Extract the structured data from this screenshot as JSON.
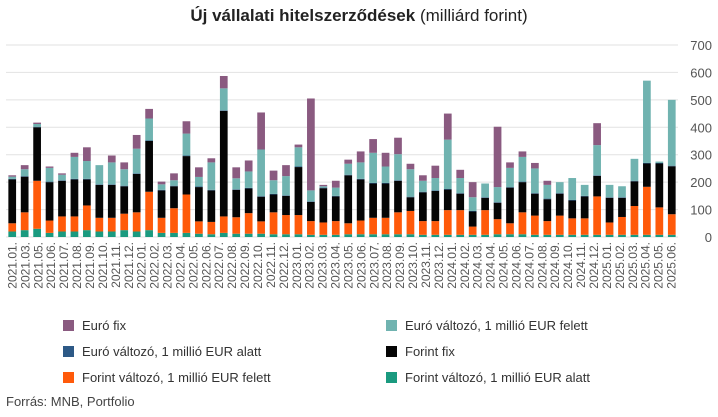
{
  "title_bold": "Új vállalati hitelszerződések",
  "title_rest": "(milliárd forint)",
  "source": "Forrás: MNB, Portfolio",
  "chart_data": {
    "type": "bar",
    "stacked": true,
    "ylim": [
      0,
      700
    ],
    "yticks": [
      0,
      100,
      200,
      300,
      400,
      500,
      600,
      700
    ],
    "grid": true,
    "legend_position": "bottom",
    "x": [
      "2021.01.",
      "2021.02.",
      "2021.03.",
      "2021.04.",
      "2021.05.",
      "2021.06.",
      "2021.07.",
      "2021.08.",
      "2021.09.",
      "2021.10.",
      "2021.11.",
      "2021.12.",
      "2022.01.",
      "2022.02.",
      "2022.03.",
      "2022.04.",
      "2022.05.",
      "2022.06.",
      "2022.07.",
      "2022.08.",
      "2022.09.",
      "2022.10.",
      "2022.11.",
      "2022.12.",
      "2023.01.",
      "2023.02.",
      "2023.03.",
      "2023.04.",
      "2023.05.",
      "2023.06.",
      "2023.07.",
      "2023.08.",
      "2023.09.",
      "2023.10.",
      "2023.11.",
      "2023.12.",
      "2024.01.",
      "2024.02.",
      "2024.03.",
      "2024.04.",
      "2024.05.",
      "2024.06.",
      "2024.07.",
      "2024.08.",
      "2024.09.",
      "2024.10.",
      "2024.11.",
      "2024.12.",
      "2025.01.",
      "2025.02.",
      "2025.03.",
      "2025.04.",
      "2025.05.",
      "2025.06."
    ],
    "tick_labels": [
      "2021.01.",
      "2021.03.",
      "2021.05.",
      "2021.06.",
      "2021.07.",
      "2021.08.",
      "2021.09.",
      "2021.10.",
      "2021.11.",
      "2021.12.",
      "2022.01.",
      "2022.02.",
      "2022.03.",
      "2022.04.",
      "2022.05.",
      "2022.06.",
      "2022.07.",
      "2022.08.",
      "2022.09.",
      "2022.10.",
      "2022.11.",
      "2022.12.",
      "2023.01.",
      "2023.02.",
      "2023.03.",
      "2023.04.",
      "2023.05.",
      "2023.06.",
      "2023.07.",
      "2023.08.",
      "2023.09.",
      "2023.10.",
      "2023.11.",
      "2023.12.",
      "2024.01.",
      "2024.02.",
      "2024.03.",
      "2024.04.",
      "2024.05.",
      "2024.06.",
      "2024.07.",
      "2024.08.",
      "2024.09.",
      "2024.10.",
      "2024.11.",
      "2024.12.",
      "2025.01.",
      "2025.02.",
      "2025.03.",
      "2025.04.",
      "2025.05.",
      "2025.06."
    ],
    "series": [
      {
        "name": "Forint változó, 1 millió EUR alatt",
        "color": "#1a9a7f",
        "values": [
          20,
          25,
          30,
          15,
          20,
          20,
          25,
          20,
          20,
          25,
          20,
          25,
          15,
          15,
          15,
          12,
          10,
          15,
          12,
          12,
          12,
          10,
          10,
          10,
          8,
          8,
          8,
          10,
          10,
          10,
          10,
          10,
          10,
          8,
          8,
          8,
          8,
          8,
          8,
          10,
          10,
          10,
          8,
          8,
          8,
          8,
          8,
          8,
          8,
          8,
          8,
          8,
          8,
          8
        ]
      },
      {
        "name": "Forint változó, 1 millió EUR felett",
        "color": "#ff5a0a",
        "values": [
          30,
          65,
          175,
          45,
          55,
          55,
          90,
          50,
          50,
          60,
          70,
          140,
          55,
          90,
          140,
          45,
          45,
          60,
          60,
          75,
          45,
          80,
          70,
          70,
          50,
          45,
          50,
          40,
          50,
          60,
          60,
          80,
          85,
          50,
          50,
          90,
          90,
          30,
          90,
          55,
          40,
          80,
          70,
          50,
          70,
          60,
          60,
          140,
          45,
          65,
          105,
          175,
          100,
          75
        ]
      },
      {
        "name": "Forint fix",
        "color": "#050505",
        "values": [
          160,
          130,
          195,
          140,
          130,
          135,
          95,
          120,
          120,
          100,
          140,
          185,
          100,
          80,
          140,
          125,
          115,
          385,
          100,
          90,
          90,
          65,
          70,
          175,
          70,
          125,
          90,
          175,
          150,
          125,
          125,
          115,
          50,
          105,
          110,
          75,
          60,
          55,
          45,
          60,
          130,
          110,
          80,
          80,
          80,
          65,
          80,
          75,
          90,
          70,
          90,
          85,
          160,
          175
        ]
      },
      {
        "name": "Euró változó, 1 millió EUR alatt",
        "color": "#2d5986",
        "values": [
          2,
          2,
          2,
          2,
          2,
          2,
          2,
          2,
          2,
          2,
          2,
          2,
          2,
          2,
          2,
          2,
          2,
          2,
          2,
          2,
          2,
          2,
          2,
          2,
          2,
          2,
          2,
          2,
          2,
          2,
          2,
          2,
          2,
          2,
          2,
          2,
          2,
          2,
          2,
          2,
          2,
          2,
          2,
          2,
          2,
          2,
          2,
          2,
          2,
          2,
          2,
          2,
          2,
          2
        ]
      },
      {
        "name": "Euró változó, 1 millió EUR felett",
        "color": "#70b3b0",
        "values": [
          8,
          25,
          10,
          50,
          20,
          80,
          65,
          70,
          80,
          60,
          90,
          80,
          20,
          20,
          80,
          35,
          100,
          80,
          40,
          60,
          170,
          50,
          70,
          70,
          40,
          5,
          30,
          40,
          60,
          110,
          60,
          95,
          100,
          40,
          45,
          180,
          55,
          50,
          50,
          55,
          70,
          90,
          90,
          50,
          40,
          80,
          40,
          110,
          45,
          40,
          80,
          300,
          5,
          240
        ]
      },
      {
        "name": "Euró fix",
        "color": "#8a5a80",
        "values": [
          5,
          15,
          5,
          5,
          5,
          15,
          50,
          0,
          25,
          25,
          50,
          35,
          10,
          25,
          45,
          35,
          15,
          45,
          40,
          40,
          135,
          35,
          40,
          10,
          335,
          5,
          25,
          15,
          40,
          50,
          50,
          60,
          20,
          20,
          45,
          95,
          30,
          55,
          0,
          220,
          20,
          20,
          20,
          15,
          0,
          0,
          0,
          80,
          0,
          0,
          0,
          0,
          0,
          0
        ]
      }
    ],
    "legend": [
      "Euró fix",
      "Euró változó, 1 millió EUR felett",
      "Euró változó, 1 millió EUR alatt",
      "Forint fix",
      "Forint változó, 1 millió EUR felett",
      "Forint változó, 1 millió EUR alatt"
    ]
  }
}
